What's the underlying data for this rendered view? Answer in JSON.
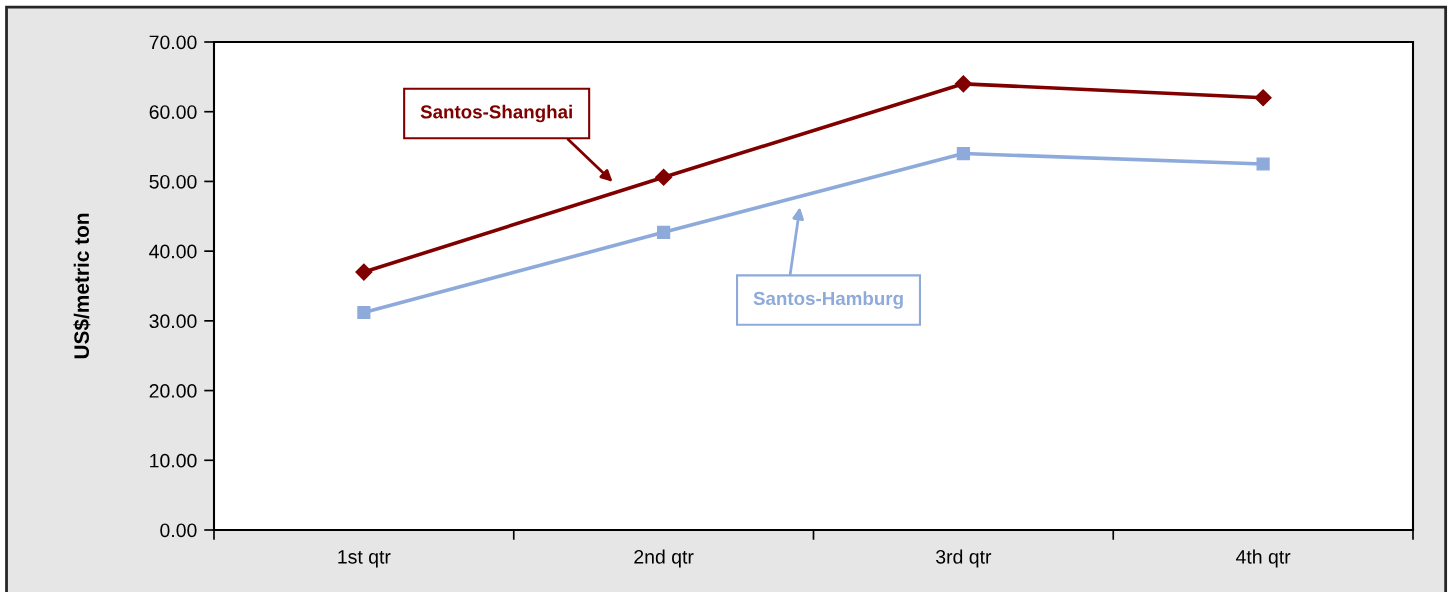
{
  "chart_data": {
    "type": "line",
    "ylabel": "US$/metric ton",
    "categories": [
      "1st qtr",
      "2nd qtr",
      "3rd qtr",
      "4th qtr"
    ],
    "series": [
      {
        "name": "Santos-Shanghai",
        "color": "#800000",
        "marker": "diamond",
        "values": [
          37.0,
          50.6,
          64.0,
          62.0
        ]
      },
      {
        "name": "Santos-Hamburg",
        "color": "#8eaadb",
        "marker": "square",
        "values": [
          31.2,
          42.7,
          54.0,
          52.5
        ]
      }
    ],
    "ylim": [
      0,
      70
    ],
    "yticks": [
      {
        "value": 0,
        "label": "0.00"
      },
      {
        "value": 10,
        "label": "10.00"
      },
      {
        "value": 20,
        "label": "20.00"
      },
      {
        "value": 30,
        "label": "30.00"
      },
      {
        "value": 40,
        "label": "40.00"
      },
      {
        "value": 50,
        "label": "50.00"
      },
      {
        "value": 60,
        "label": "60.00"
      },
      {
        "value": 70,
        "label": "70.00"
      }
    ],
    "line_style": "solid",
    "grid": false,
    "legend": false
  }
}
